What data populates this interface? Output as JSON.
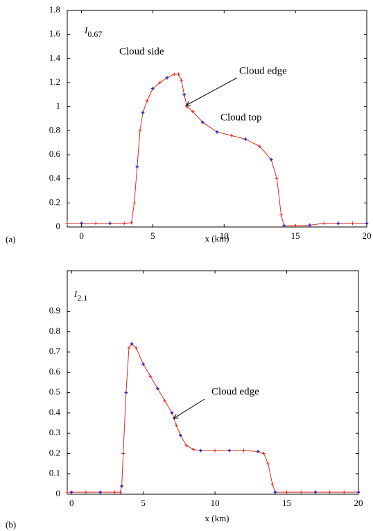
{
  "chart_data": [
    {
      "type": "line",
      "panel": "(a)",
      "label": "I",
      "label_sub": "0.67",
      "xlabel": "x  (km)",
      "annotations": [
        "Cloud side",
        "Cloud edge",
        "Cloud top"
      ],
      "xlim": [
        -1,
        20
      ],
      "xticks": [
        0,
        5,
        10,
        15,
        20
      ],
      "ylim": [
        0,
        1.8
      ],
      "yticks": [
        0,
        0.2,
        0.4,
        0.6,
        0.8,
        1,
        1.2,
        1.4,
        1.6,
        1.8
      ],
      "series": [
        {
          "color": "#e8261c",
          "x": [
            -1,
            0,
            1,
            2,
            3,
            3.5,
            3.7,
            3.9,
            4.1,
            4.3,
            4.6,
            5,
            5.5,
            6,
            6.5,
            6.8,
            7,
            7.2,
            7.4,
            7.8,
            8.5,
            9.5,
            10.5,
            11.5,
            12.5,
            13.3,
            13.7,
            14,
            14.2,
            15,
            16,
            17,
            18,
            19,
            20
          ],
          "values": [
            0.03,
            0.03,
            0.03,
            0.03,
            0.03,
            0.035,
            0.2,
            0.5,
            0.8,
            0.95,
            1.05,
            1.15,
            1.2,
            1.24,
            1.27,
            1.27,
            1.22,
            1.1,
            1.0,
            0.96,
            0.87,
            0.79,
            0.76,
            0.73,
            0.67,
            0.56,
            0.4,
            0.1,
            0.01,
            0.01,
            0.015,
            0.03,
            0.03,
            0.03,
            0.03
          ]
        },
        {
          "color": "#2438d8",
          "x": [
            0,
            2,
            3.9,
            4.3,
            5,
            6,
            7.2,
            8.5,
            9.5,
            11.5,
            13.3,
            14.2,
            16,
            18,
            20
          ],
          "values": [
            0.03,
            0.03,
            0.5,
            0.95,
            1.15,
            1.24,
            1.1,
            0.87,
            0.79,
            0.73,
            0.56,
            0.01,
            0.015,
            0.03,
            0.03
          ]
        }
      ]
    },
    {
      "type": "line",
      "panel": "(b)",
      "label": "I",
      "label_sub": "2.1",
      "xlabel": "x  (km)",
      "annotations": [
        "Cloud edge"
      ],
      "xlim": [
        -0.3,
        20
      ],
      "xticks": [
        0,
        5,
        10,
        15,
        20
      ],
      "ylim": [
        0,
        1.1
      ],
      "yticks": [
        0,
        0.1,
        0.2,
        0.3,
        0.4,
        0.5,
        0.6,
        0.7,
        0.8,
        0.9
      ],
      "series": [
        {
          "color": "#e8261c",
          "x": [
            -0.3,
            0,
            1,
            2,
            3,
            3.4,
            3.5,
            3.6,
            3.8,
            4,
            4.2,
            4.5,
            5,
            5.5,
            6,
            6.5,
            7,
            7.3,
            7.6,
            8,
            8.5,
            9,
            10,
            11,
            12,
            13,
            13.4,
            13.7,
            14,
            14.2,
            15,
            16,
            17,
            18,
            19,
            20
          ],
          "values": [
            0.01,
            0.01,
            0.01,
            0.01,
            0.01,
            0.01,
            0.04,
            0.2,
            0.5,
            0.72,
            0.74,
            0.72,
            0.64,
            0.58,
            0.52,
            0.46,
            0.4,
            0.34,
            0.29,
            0.24,
            0.22,
            0.215,
            0.215,
            0.215,
            0.215,
            0.21,
            0.2,
            0.15,
            0.05,
            0.01,
            0.01,
            0.01,
            0.01,
            0.01,
            0.01,
            0.01
          ]
        },
        {
          "color": "#2438d8",
          "x": [
            0,
            2,
            3.5,
            3.8,
            4.2,
            5,
            6,
            7,
            7.6,
            9,
            11,
            13,
            14.2,
            17,
            20
          ],
          "values": [
            0.01,
            0.01,
            0.04,
            0.5,
            0.74,
            0.64,
            0.52,
            0.4,
            0.29,
            0.215,
            0.215,
            0.21,
            0.01,
            0.01,
            0.01
          ]
        }
      ]
    }
  ]
}
